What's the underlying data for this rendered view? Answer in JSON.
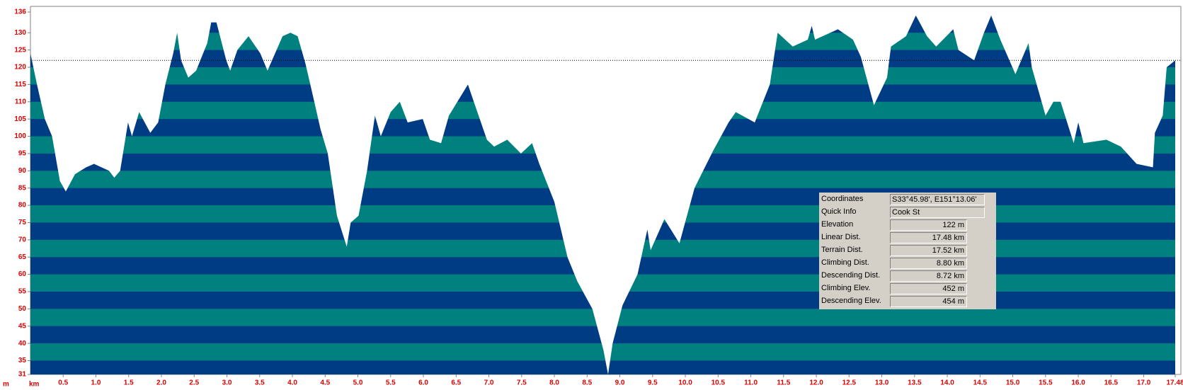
{
  "chart_data": {
    "type": "area",
    "x_label": "km",
    "y_label": "m",
    "x": [
      0,
      0.1,
      0.22,
      0.33,
      0.45,
      0.54,
      0.68,
      0.85,
      0.97,
      1.2,
      1.28,
      1.37,
      1.49,
      1.55,
      1.66,
      1.83,
      1.95,
      2.06,
      2.18,
      2.24,
      2.3,
      2.41,
      2.53,
      2.7,
      2.76,
      2.84,
      2.99,
      3.05,
      3.16,
      3.33,
      3.51,
      3.62,
      3.85,
      3.97,
      4.08,
      4.2,
      4.31,
      4.43,
      4.54,
      4.68,
      4.83,
      4.89,
      5.01,
      5.14,
      5.26,
      5.35,
      5.5,
      5.64,
      5.76,
      5.99,
      6.1,
      6.27,
      6.39,
      6.68,
      6.77,
      6.97,
      7.08,
      7.28,
      7.49,
      7.66,
      7.77,
      8.0,
      8.2,
      8.35,
      8.58,
      8.75,
      8.82,
      8.89,
      9.04,
      9.27,
      9.42,
      9.47,
      9.68,
      9.91,
      10.14,
      10.43,
      10.66,
      10.77,
      11.06,
      11.29,
      11.41,
      11.64,
      11.87,
      11.93,
      11.98,
      12.33,
      12.56,
      12.68,
      12.88,
      13.08,
      13.14,
      13.37,
      13.52,
      13.69,
      13.83,
      14.09,
      14.17,
      14.41,
      14.56,
      14.67,
      14.81,
      15.04,
      15.24,
      15.29,
      15.5,
      15.62,
      15.73,
      15.93,
      16.0,
      16.08,
      16.43,
      16.65,
      16.89,
      17.14,
      17.17,
      17.29,
      17.35,
      17.48
    ],
    "values": [
      124,
      115,
      105,
      100,
      87,
      84,
      89,
      91,
      92,
      90,
      88,
      90,
      104,
      100,
      107,
      101,
      104,
      115,
      124,
      130,
      122,
      117,
      119,
      127,
      133,
      133,
      122,
      119,
      125,
      129,
      124,
      119,
      129,
      130,
      129,
      121,
      112,
      102,
      95,
      77,
      68,
      75,
      77,
      90,
      106,
      100,
      107,
      110,
      104,
      105,
      99,
      98,
      106,
      115,
      110,
      99,
      97,
      99,
      95,
      98,
      92,
      81,
      65,
      58,
      50,
      38,
      31,
      40,
      51,
      60,
      73,
      67,
      76,
      69,
      85,
      96,
      104,
      107,
      104,
      115,
      130,
      126,
      128,
      132,
      128,
      131,
      128,
      123,
      109,
      117,
      126,
      129,
      135,
      129,
      126,
      131,
      125,
      122,
      130,
      135,
      128,
      118,
      127,
      120,
      106,
      110,
      110,
      98,
      104,
      98,
      99,
      97,
      92,
      91,
      101,
      106,
      120,
      122
    ],
    "colors": [
      "#003c84",
      "#00807e"
    ],
    "hline": 122,
    "xlim": [
      0,
      17.48
    ],
    "ylim": [
      31,
      136
    ],
    "xticks": [
      0.5,
      {
        "value": 1,
        "label": "1.0"
      },
      1.5,
      {
        "value": 2,
        "label": "2.0"
      },
      2.5,
      {
        "value": 3,
        "label": "3.0"
      },
      3.5,
      {
        "value": 4,
        "label": "4.0"
      },
      4.5,
      {
        "value": 5,
        "label": "5.0"
      },
      5.5,
      {
        "value": 6,
        "label": "6.0"
      },
      6.5,
      {
        "value": 7,
        "label": "7.0"
      },
      7.5,
      {
        "value": 8,
        "label": "8.0"
      },
      8.5,
      {
        "value": 9,
        "label": "9.0"
      },
      9.5,
      {
        "value": 10,
        "label": "10.0"
      },
      10.5,
      {
        "value": 11,
        "label": "11.0"
      },
      11.5,
      {
        "value": 12,
        "label": "12.0"
      },
      12.5,
      {
        "value": 13,
        "label": "13.0"
      },
      13.5,
      {
        "value": 14,
        "label": "14.0"
      },
      14.5,
      {
        "value": 15,
        "label": "15.0"
      },
      15.5,
      {
        "value": 16,
        "label": "16.0"
      },
      16.5,
      {
        "value": 17,
        "label": "17.0"
      },
      17.48
    ],
    "yticks": [
      31,
      35,
      40,
      45,
      50,
      55,
      60,
      65,
      70,
      75,
      80,
      85,
      90,
      95,
      100,
      105,
      110,
      115,
      120,
      125,
      130,
      136
    ]
  },
  "info_panel": {
    "rows": [
      {
        "label": "Coordinates",
        "value": "S33°45.98', E151°13.06'"
      },
      {
        "label": "Quick Info",
        "value": "Cook St"
      },
      {
        "label": "Elevation",
        "value": "122 m"
      },
      {
        "label": "Linear Dist.",
        "value": "17.48 km"
      },
      {
        "label": "Terrain Dist.",
        "value": "17.52 km"
      },
      {
        "label": "Climbing Dist.",
        "value": "8.80 km"
      },
      {
        "label": "Descending Dist.",
        "value": "8.72 km"
      },
      {
        "label": "Climbing Elev.",
        "value": "452 m"
      },
      {
        "label": "Descending Elev.",
        "value": "454 m"
      }
    ]
  }
}
